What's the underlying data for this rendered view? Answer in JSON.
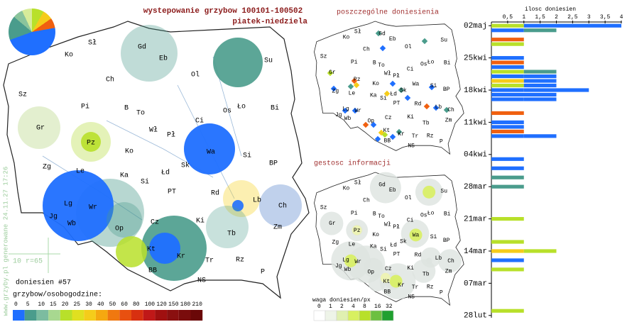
{
  "header": {
    "title": "wystepowanie grzybow 100101-100502",
    "subtitle": "piatek-niedziela"
  },
  "cities": [
    "Sł",
    "Gd",
    "Eb",
    "Su",
    "Ko",
    "Ol",
    "Ch",
    "Sz",
    "Pi",
    "B",
    "To",
    "Os",
    "Ło",
    "Bi",
    "Gr",
    "Pz",
    "Wł",
    "Pł",
    "Ci",
    "Wa",
    "Ko",
    "Si",
    "Zg",
    "Le",
    "Ka",
    "Łd",
    "Sk",
    "BP",
    "Si",
    "PT",
    "Rd",
    "Lb",
    "Lg",
    "Wr",
    "Ch",
    "Jg",
    "Wb",
    "Op",
    "Cz",
    "Ki",
    "Zm",
    "Tb",
    "Kt",
    "Kr",
    "Tr",
    "Rz",
    "BB",
    "NS",
    "P"
  ],
  "main_map": {
    "reports_label": "doniesien #57",
    "scale_label": "10 r=65",
    "credit": "www.grzyby.pl generowane 24.11.27 17:26"
  },
  "legend": {
    "title": "grzybow/osobogodzine:",
    "ticks": [
      0,
      5,
      10,
      15,
      20,
      25,
      30,
      40,
      50,
      60,
      80,
      100,
      120,
      150,
      180,
      210
    ],
    "colors": [
      "#1f6fff",
      "#4a9c8c",
      "#7cbca0",
      "#a8d890",
      "#b8e02a",
      "#e0e020",
      "#f5cc1a",
      "#f5a810",
      "#f07810",
      "#e85010",
      "#d83010",
      "#c01818",
      "#a01010",
      "#8a1010",
      "#7a0c0c",
      "#6a0808"
    ]
  },
  "reports_map": {
    "title": "poszczególne doniesienia"
  },
  "density_map": {
    "title": "gestosc informacji",
    "legend": {
      "title": "waga doniesien/px",
      "ticks": [
        0,
        1,
        2,
        4,
        8,
        16,
        32
      ],
      "colors": [
        "#ffffff",
        "#eef4e8",
        "#e0f0b0",
        "#d8f060",
        "#b8e02a",
        "#6cc040",
        "#20a030"
      ]
    }
  },
  "chart_data": {
    "type": "bar",
    "x_label": "ilosc doniesien",
    "xlim": [
      0,
      4
    ],
    "xticks": [
      {
        "value": 0.5,
        "label": "0,5"
      },
      1,
      {
        "value": 1.5,
        "label": "1,5"
      },
      2,
      {
        "value": 2.5,
        "label": "2,5"
      },
      3,
      {
        "value": 3.5,
        "label": "3,5"
      },
      4
    ],
    "ylim": [
      -0.5,
      63.5
    ],
    "yticks": [
      {
        "value": 0,
        "label": "02maj"
      },
      {
        "value": 7,
        "label": "25kwi"
      },
      {
        "value": 14,
        "label": "18kwi"
      },
      {
        "value": 21,
        "label": "11kwi"
      },
      {
        "value": 28,
        "label": "04kwi"
      },
      {
        "value": 35,
        "label": "28mar"
      },
      {
        "value": 42,
        "label": "21mar"
      },
      {
        "value": 49,
        "label": "14mar"
      },
      {
        "value": 56,
        "label": "07mar"
      },
      {
        "value": 63,
        "label": "28lut"
      }
    ],
    "bars": [
      {
        "day": 0,
        "segments": [
          {
            "value": 1,
            "color": "#b8e02a"
          },
          {
            "value": 3,
            "color": "#1f6fff"
          }
        ]
      },
      {
        "day": 1,
        "segments": [
          {
            "value": 1,
            "color": "#1f6fff"
          },
          {
            "value": 1,
            "color": "#4a9c8c"
          }
        ]
      },
      {
        "day": 3,
        "segments": [
          {
            "value": 1,
            "color": "#f06010"
          }
        ]
      },
      {
        "day": 4,
        "segments": [
          {
            "value": 1,
            "color": "#b8e02a"
          }
        ]
      },
      {
        "day": 7,
        "segments": [
          {
            "value": 1,
            "color": "#1f6fff"
          }
        ]
      },
      {
        "day": 8,
        "segments": [
          {
            "value": 1,
            "color": "#f06010"
          }
        ]
      },
      {
        "day": 9,
        "segments": [
          {
            "value": 1,
            "color": "#1f6fff"
          }
        ]
      },
      {
        "day": 10,
        "segments": [
          {
            "value": 1,
            "color": "#b8e02a"
          },
          {
            "value": 1,
            "color": "#4a9c8c"
          }
        ]
      },
      {
        "day": 11,
        "segments": [
          {
            "value": 1,
            "color": "#1f6fff"
          },
          {
            "value": 1,
            "color": "#1f6fff"
          }
        ]
      },
      {
        "day": 12,
        "segments": [
          {
            "value": 1,
            "color": "#f5cc1a"
          },
          {
            "value": 1,
            "color": "#1f6fff"
          }
        ]
      },
      {
        "day": 13,
        "segments": [
          {
            "value": 1,
            "color": "#b8e02a"
          },
          {
            "value": 1,
            "color": "#1f6fff"
          }
        ]
      },
      {
        "day": 14,
        "segments": [
          {
            "value": 1,
            "color": "#1f6fff"
          },
          {
            "value": 2,
            "color": "#1f6fff"
          }
        ]
      },
      {
        "day": 15,
        "segments": [
          {
            "value": 2,
            "color": "#1f6fff"
          }
        ]
      },
      {
        "day": 16,
        "segments": [
          {
            "value": 1,
            "color": "#1f6fff"
          },
          {
            "value": 1,
            "color": "#1f6fff"
          }
        ]
      },
      {
        "day": 19,
        "segments": [
          {
            "value": 1,
            "color": "#f06010"
          }
        ]
      },
      {
        "day": 21,
        "segments": [
          {
            "value": 1,
            "color": "#1f6fff"
          }
        ]
      },
      {
        "day": 22,
        "segments": [
          {
            "value": 1,
            "color": "#1f6fff"
          }
        ]
      },
      {
        "day": 23,
        "segments": [
          {
            "value": 1,
            "color": "#f06010"
          }
        ]
      },
      {
        "day": 24,
        "segments": [
          {
            "value": 1,
            "color": "#1f6fff"
          },
          {
            "value": 1,
            "color": "#1f6fff"
          }
        ]
      },
      {
        "day": 29,
        "segments": [
          {
            "value": 1,
            "color": "#1f6fff"
          }
        ]
      },
      {
        "day": 31,
        "segments": [
          {
            "value": 1,
            "color": "#1f6fff"
          }
        ]
      },
      {
        "day": 33,
        "segments": [
          {
            "value": 1,
            "color": "#4a9c8c"
          }
        ]
      },
      {
        "day": 35,
        "segments": [
          {
            "value": 1,
            "color": "#4a9c8c"
          }
        ]
      },
      {
        "day": 42,
        "segments": [
          {
            "value": 1,
            "color": "#b8e02a"
          }
        ]
      },
      {
        "day": 47,
        "segments": [
          {
            "value": 1,
            "color": "#b8e02a"
          }
        ]
      },
      {
        "day": 49,
        "segments": [
          {
            "value": 1,
            "color": "#f5cc1a"
          },
          {
            "value": 1,
            "color": "#b8e02a"
          }
        ]
      },
      {
        "day": 51,
        "segments": [
          {
            "value": 1,
            "color": "#1f6fff"
          }
        ]
      },
      {
        "day": 53,
        "segments": [
          {
            "value": 1,
            "color": "#b8e02a"
          }
        ]
      },
      {
        "day": 62,
        "segments": [
          {
            "value": 1,
            "color": "#b8e02a"
          }
        ]
      }
    ]
  }
}
